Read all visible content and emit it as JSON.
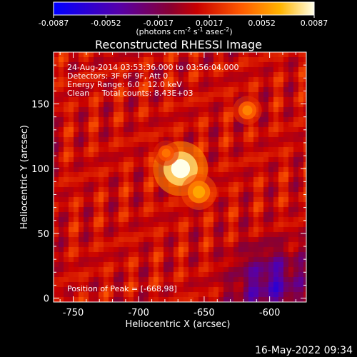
{
  "colorbar": {
    "tick_labels": [
      "-0.0087",
      "-0.0052",
      "-0.0017",
      "0.0017",
      "0.0052",
      "0.0087"
    ],
    "tick_values": [
      -0.0087,
      -0.0052,
      -0.0017,
      0.0017,
      0.0052,
      0.0087
    ],
    "range": [
      -0.0087,
      0.0087
    ],
    "units_prefix": "(photons cm",
    "units_exp1": "-2",
    "units_mid": " s",
    "units_exp2": "-1",
    "units_mid2": " asec",
    "units_exp3": "-2",
    "units_suffix": ")",
    "colormap": "blue-purple-red-orange-yellow-white"
  },
  "plot": {
    "title": "Reconstructed RHESSI Image",
    "info_lines": [
      "24-Aug-2014 03:53:36.000 to 03:56:04.000",
      "Detectors: 3F 6F 9F, Att 0",
      "Energy Range: 6.0 - 12.0 keV",
      "Clean     Total counts: 8.43E+03"
    ],
    "peak_label": "Position of Peak = [-668,98]",
    "footer_date": "16-May-2022 09:34"
  },
  "chart_data": {
    "type": "heatmap",
    "title": "Reconstructed RHESSI Image",
    "xlabel": "Heliocentric X (arcsec)",
    "ylabel": "Heliocentric Y (arcsec)",
    "xlim": [
      -765,
      -572
    ],
    "ylim": [
      -3,
      190
    ],
    "xticks": [
      -750,
      -700,
      -650,
      -600
    ],
    "yticks": [
      0,
      50,
      100,
      150
    ],
    "xtick_labels": [
      "-750",
      "-700",
      "-650",
      "-600"
    ],
    "ytick_labels": [
      "0",
      "50",
      "100",
      "150"
    ],
    "peak_position": [
      -668,
      98
    ],
    "sources": [
      {
        "x": -668,
        "y": 100,
        "value": 0.0087
      },
      {
        "x": -654,
        "y": 82,
        "value": 0.006
      },
      {
        "x": -617,
        "y": 145,
        "value": 0.005
      },
      {
        "x": -679,
        "y": 112,
        "value": 0.0045
      }
    ],
    "value_range": [
      -0.0087,
      0.0087
    ]
  }
}
